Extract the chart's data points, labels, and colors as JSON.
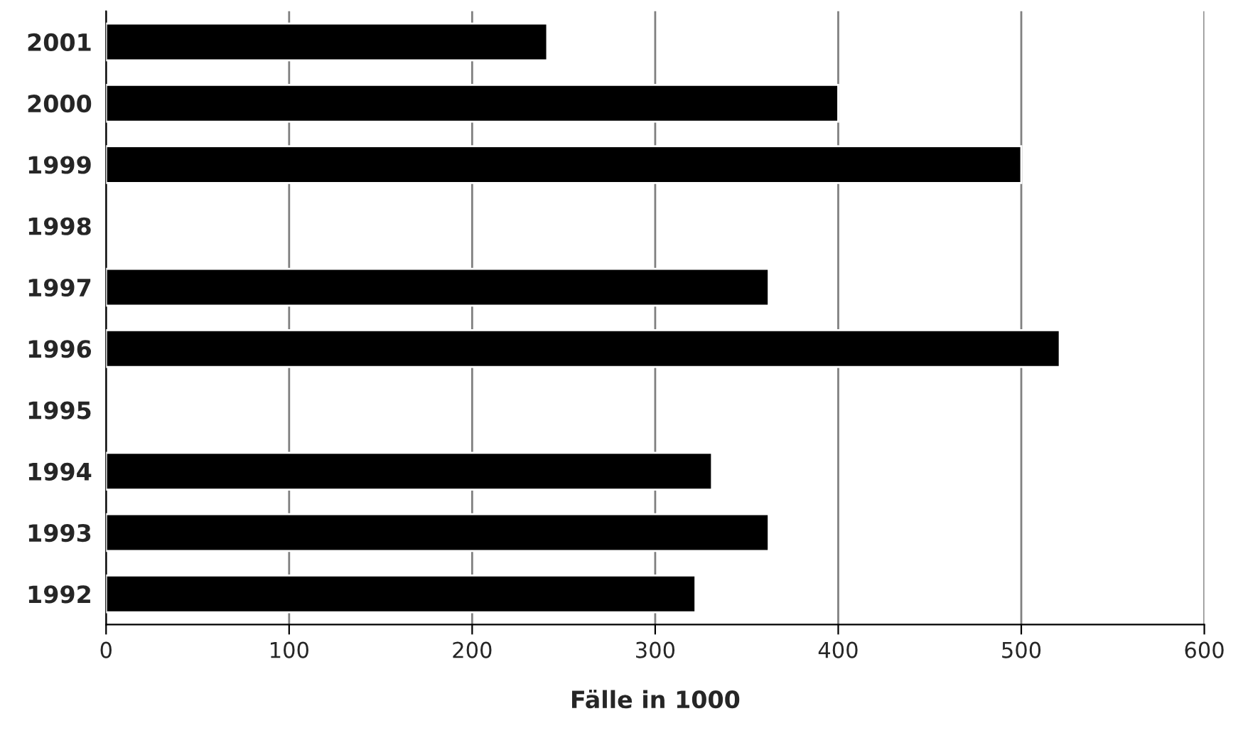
{
  "chart_data": {
    "type": "bar",
    "orientation": "horizontal",
    "xlabel": "Fälle in 1000",
    "categories": [
      "2001",
      "2000",
      "1999",
      "1998",
      "1997",
      "1996",
      "1995",
      "1994",
      "1993",
      "1992"
    ],
    "values": [
      241,
      400,
      500,
      null,
      362,
      521,
      null,
      331,
      362,
      322
    ],
    "color": "#000000",
    "xlim": [
      0,
      600
    ],
    "xticks": [
      0,
      100,
      200,
      300,
      400,
      500,
      600
    ],
    "grid": "x",
    "legend": false
  }
}
